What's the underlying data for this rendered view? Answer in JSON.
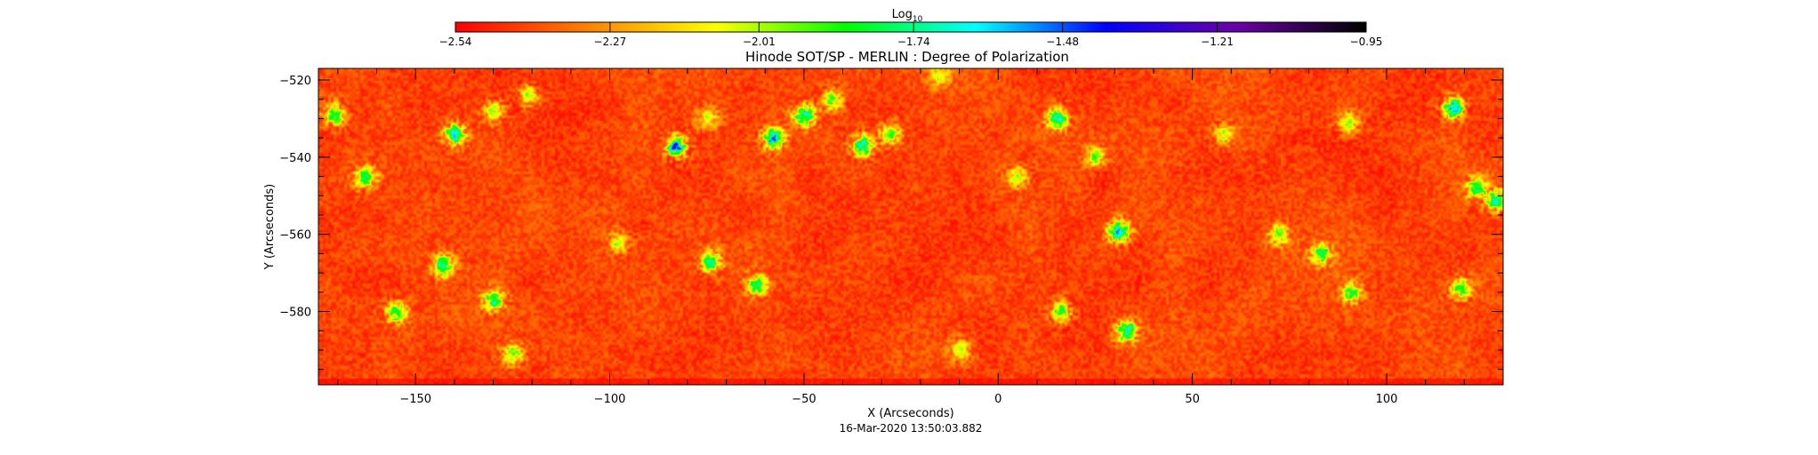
{
  "chart_data": {
    "type": "heatmap",
    "title": "Hinode SOT/SP - MERLIN : Degree of Polarization",
    "xlabel": "X (Arcseconds)",
    "ylabel": "Y (Arcseconds)",
    "xlim": [
      -175,
      130
    ],
    "ylim": [
      -599,
      -517
    ],
    "x_ticks": [
      -150,
      -100,
      -50,
      0,
      50,
      100
    ],
    "y_ticks": [
      -520,
      -540,
      -560,
      -580
    ],
    "x_tick_labels": [
      "−150",
      "−100",
      "−50",
      "0",
      "50",
      "100"
    ],
    "y_tick_labels": [
      "−520",
      "−540",
      "−560",
      "−580"
    ],
    "timestamp": "16-Mar-2020 13:50:03.882",
    "grid": false,
    "colorbar": {
      "title": "Log",
      "title_subscript": "10",
      "placement": "top",
      "range": [
        -2.54,
        -0.95
      ],
      "tick_values": [
        -2.54,
        -2.27,
        -2.01,
        -1.74,
        -1.48,
        -1.21,
        -0.95
      ],
      "tick_labels": [
        "−2.54",
        "−2.27",
        "−2.01",
        "−1.74",
        "−1.48",
        "−1.21",
        "−0.95"
      ],
      "colormap": [
        "#ff0000",
        "#ff7f00",
        "#ffff00",
        "#00ff00",
        "#00ffff",
        "#0000ff",
        "#6a00a8",
        "#000000"
      ]
    },
    "field_stats": {
      "background_mean": -2.42,
      "background_spread": 0.05
    },
    "features": [
      {
        "x": -171,
        "y": -529,
        "peak": -1.6
      },
      {
        "x": -163,
        "y": -545,
        "peak": -1.6
      },
      {
        "x": -140,
        "y": -534,
        "peak": -1.45
      },
      {
        "x": -130,
        "y": -528,
        "peak": -1.9
      },
      {
        "x": -121,
        "y": -524,
        "peak": -1.9
      },
      {
        "x": -83,
        "y": -537,
        "peak": -1.2
      },
      {
        "x": -75,
        "y": -530,
        "peak": -1.9
      },
      {
        "x": -58,
        "y": -535,
        "peak": -1.35
      },
      {
        "x": -50,
        "y": -529,
        "peak": -1.45
      },
      {
        "x": -43,
        "y": -525,
        "peak": -1.8
      },
      {
        "x": -35,
        "y": -537,
        "peak": -1.45
      },
      {
        "x": -28,
        "y": -534,
        "peak": -1.7
      },
      {
        "x": -15,
        "y": -519,
        "peak": -1.9
      },
      {
        "x": 15,
        "y": -530,
        "peak": -1.5
      },
      {
        "x": 25,
        "y": -540,
        "peak": -1.8
      },
      {
        "x": 31,
        "y": -559,
        "peak": -1.3
      },
      {
        "x": 33,
        "y": -585,
        "peak": -1.4
      },
      {
        "x": 16,
        "y": -580,
        "peak": -1.7
      },
      {
        "x": -143,
        "y": -568,
        "peak": -1.5
      },
      {
        "x": -130,
        "y": -577,
        "peak": -1.5
      },
      {
        "x": -155,
        "y": -580,
        "peak": -1.6
      },
      {
        "x": -74,
        "y": -567,
        "peak": -1.6
      },
      {
        "x": -62,
        "y": -573,
        "peak": -1.6
      },
      {
        "x": -98,
        "y": -562,
        "peak": -1.9
      },
      {
        "x": 72,
        "y": -560,
        "peak": -1.8
      },
      {
        "x": 83,
        "y": -565,
        "peak": -1.6
      },
      {
        "x": 91,
        "y": -575,
        "peak": -1.7
      },
      {
        "x": 117,
        "y": -527,
        "peak": -1.3
      },
      {
        "x": 123,
        "y": -548,
        "peak": -1.6
      },
      {
        "x": 128,
        "y": -551,
        "peak": -1.5
      },
      {
        "x": 119,
        "y": -574,
        "peak": -1.7
      },
      {
        "x": 58,
        "y": -534,
        "peak": -1.9
      },
      {
        "x": 90,
        "y": -531,
        "peak": -1.9
      },
      {
        "x": -125,
        "y": -591,
        "peak": -1.8
      },
      {
        "x": 5,
        "y": -545,
        "peak": -1.9
      },
      {
        "x": -10,
        "y": -590,
        "peak": -1.9
      }
    ]
  }
}
